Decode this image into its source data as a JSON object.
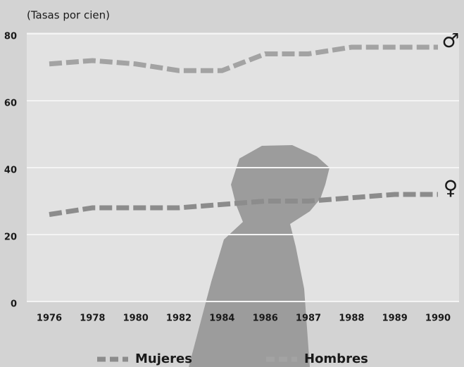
{
  "chart_data": {
    "type": "line",
    "y_axis_label": "(Tasas por cien)",
    "categories": [
      "1976",
      "1978",
      "1980",
      "1982",
      "1984",
      "1986",
      "1987",
      "1988",
      "1989",
      "1990"
    ],
    "series": [
      {
        "name": "Mujeres",
        "color": "#8c8c8c",
        "values": [
          26,
          28,
          28,
          28,
          29,
          30,
          30,
          31,
          32,
          32
        ],
        "annotation": "♀"
      },
      {
        "name": "Hombres",
        "color": "#a3a3a3",
        "values": [
          71,
          72,
          71,
          69,
          69,
          74,
          74,
          76,
          76,
          76
        ],
        "annotation": "♂"
      }
    ],
    "ylim": [
      0,
      80
    ],
    "yticks": [
      0,
      20,
      40,
      60,
      80
    ],
    "grid": true
  }
}
